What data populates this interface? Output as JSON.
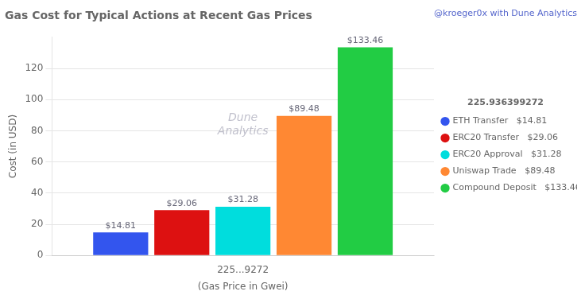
{
  "chart_data": {
    "type": "bar",
    "title": "Gas Cost for Typical Actions at Recent Gas Prices",
    "x_label": "(Gas Price in Gwei)",
    "y_label": "Cost (in USD)",
    "categories": [
      "225...9272"
    ],
    "series": [
      {
        "name": "ETH Transfer",
        "color": "#3355ee",
        "values": [
          14.81
        ],
        "value_labels": [
          "$14.81"
        ]
      },
      {
        "name": "ERC20 Transfer",
        "color": "#dd1111",
        "values": [
          29.06
        ],
        "value_labels": [
          "$29.06"
        ]
      },
      {
        "name": "ERC20 Approval",
        "color": "#00dddd",
        "values": [
          31.28
        ],
        "value_labels": [
          "$31.28"
        ]
      },
      {
        "name": "Uniswap Trade",
        "color": "#ff8833",
        "values": [
          89.48
        ],
        "value_labels": [
          "$89.48"
        ]
      },
      {
        "name": "Compound Deposit",
        "color": "#22cc44",
        "values": [
          133.46
        ],
        "value_labels": [
          "$133.46"
        ]
      }
    ],
    "ylim": [
      0,
      140
    ],
    "yticks": [
      0,
      20,
      40,
      60,
      80,
      100,
      120
    ],
    "grid": true,
    "legend": "right",
    "legend_title": "225.936399272",
    "data_labels": true,
    "annotations": [
      {
        "text": "@kroeger0x with Dune Analytics"
      },
      {
        "text": "Dune\nAnalytics"
      }
    ]
  }
}
